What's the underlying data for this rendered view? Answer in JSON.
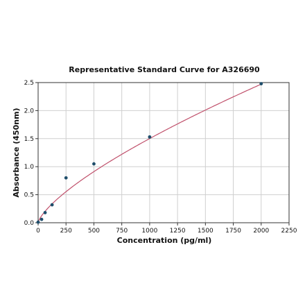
{
  "chart_data": {
    "type": "scatter",
    "title": "Representative Standard Curve for A326690",
    "xlabel": "Concentration (pg/ml)",
    "ylabel": "Absorbance (450nm)",
    "xlim": [
      0,
      2250
    ],
    "ylim": [
      0,
      2.5
    ],
    "x_ticks": [
      0,
      250,
      500,
      750,
      1000,
      1250,
      1500,
      1750,
      2000,
      2250
    ],
    "y_ticks": [
      0.0,
      0.5,
      1.0,
      1.5,
      2.0,
      2.5
    ],
    "x_tick_labels": [
      "0",
      "250",
      "500",
      "750",
      "1000",
      "1250",
      "1500",
      "1750",
      "2000",
      "2250"
    ],
    "y_tick_labels": [
      "0.0",
      "0.5",
      "1.0",
      "1.5",
      "2.0",
      "2.5"
    ],
    "grid": true,
    "series": [
      {
        "type": "scatter",
        "x": [
          0,
          31.25,
          62.5,
          125,
          250,
          500,
          1000,
          2000
        ],
        "y": [
          0.01,
          0.06,
          0.18,
          0.32,
          0.8,
          1.05,
          1.53,
          2.48
        ],
        "color": "#1f4e6b"
      },
      {
        "type": "line",
        "fit": {
          "model": "power",
          "a": 0.01042,
          "b": 0.7195,
          "c": 0.0
        },
        "color": "#c0506b"
      }
    ]
  }
}
